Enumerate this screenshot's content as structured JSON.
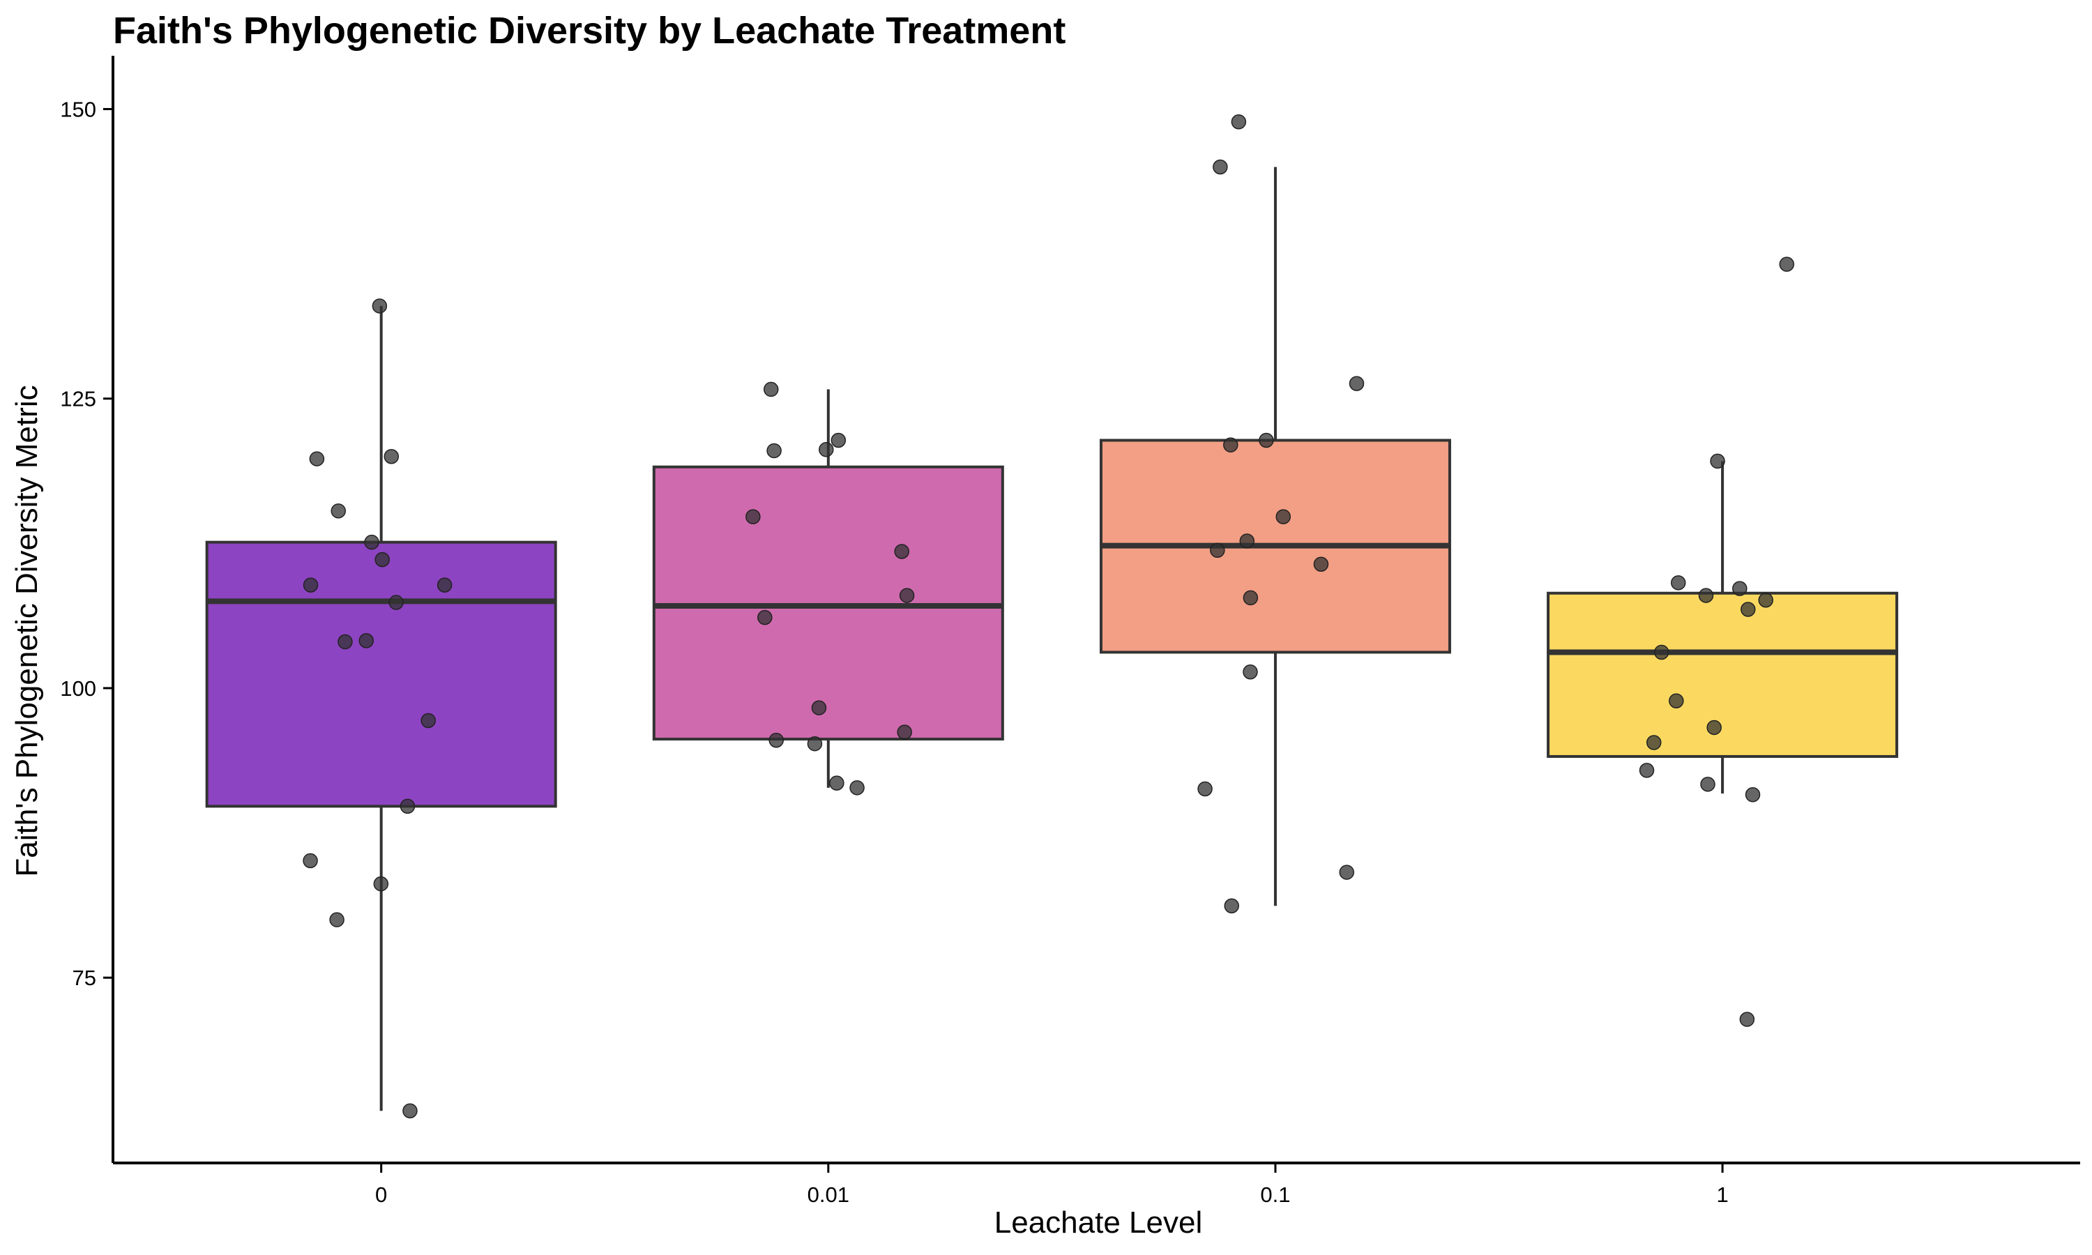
{
  "chart_data": {
    "type": "box",
    "title": "Faith's Phylogenetic Diversity by Leachate Treatment",
    "xlabel": "Leachate Level",
    "ylabel": "Faith's Phylogenetic Diversity Metric",
    "categories": [
      "0",
      "0.01",
      "0.1",
      "1"
    ],
    "ylim": [
      59,
      154
    ],
    "yticks": [
      75,
      100,
      125,
      150
    ],
    "grid": false,
    "legend": "none",
    "colors": [
      "#8D44C2",
      "#CF6AAE",
      "#F29F85",
      "#FBD960"
    ],
    "point_color": "#333333",
    "boxes": [
      {
        "category": "0",
        "whisker_low": 63.5,
        "q1": 89.8,
        "median": 107.5,
        "q3": 112.6,
        "whisker_high": 133.0
      },
      {
        "category": "0.01",
        "whisker_low": 91.4,
        "q1": 95.6,
        "median": 107.1,
        "q3": 119.1,
        "whisker_high": 125.8
      },
      {
        "category": "0.1",
        "whisker_low": 81.2,
        "q1": 103.1,
        "median": 112.3,
        "q3": 121.4,
        "whisker_high": 145.0
      },
      {
        "category": "1",
        "whisker_low": 90.9,
        "q1": 94.1,
        "median": 103.1,
        "q3": 108.2,
        "whisker_high": 119.6
      }
    ],
    "points": [
      [
        133.0,
        120.0,
        119.8,
        115.3,
        112.6,
        111.1,
        108.9,
        108.9,
        107.4,
        104.1,
        104.0,
        97.2,
        89.8,
        85.1,
        83.1,
        80.0,
        63.5
      ],
      [
        125.8,
        121.4,
        120.6,
        120.5,
        114.8,
        111.8,
        108.0,
        106.1,
        98.3,
        96.2,
        95.5,
        95.2,
        91.8,
        91.4
      ],
      [
        148.9,
        145.0,
        126.3,
        121.4,
        121.0,
        114.8,
        112.7,
        111.9,
        110.7,
        107.8,
        101.4,
        91.3,
        84.1,
        81.2
      ],
      [
        136.6,
        119.6,
        109.1,
        108.6,
        108.0,
        107.6,
        106.8,
        103.1,
        98.9,
        96.6,
        95.3,
        92.9,
        91.7,
        90.8,
        71.4
      ]
    ]
  }
}
